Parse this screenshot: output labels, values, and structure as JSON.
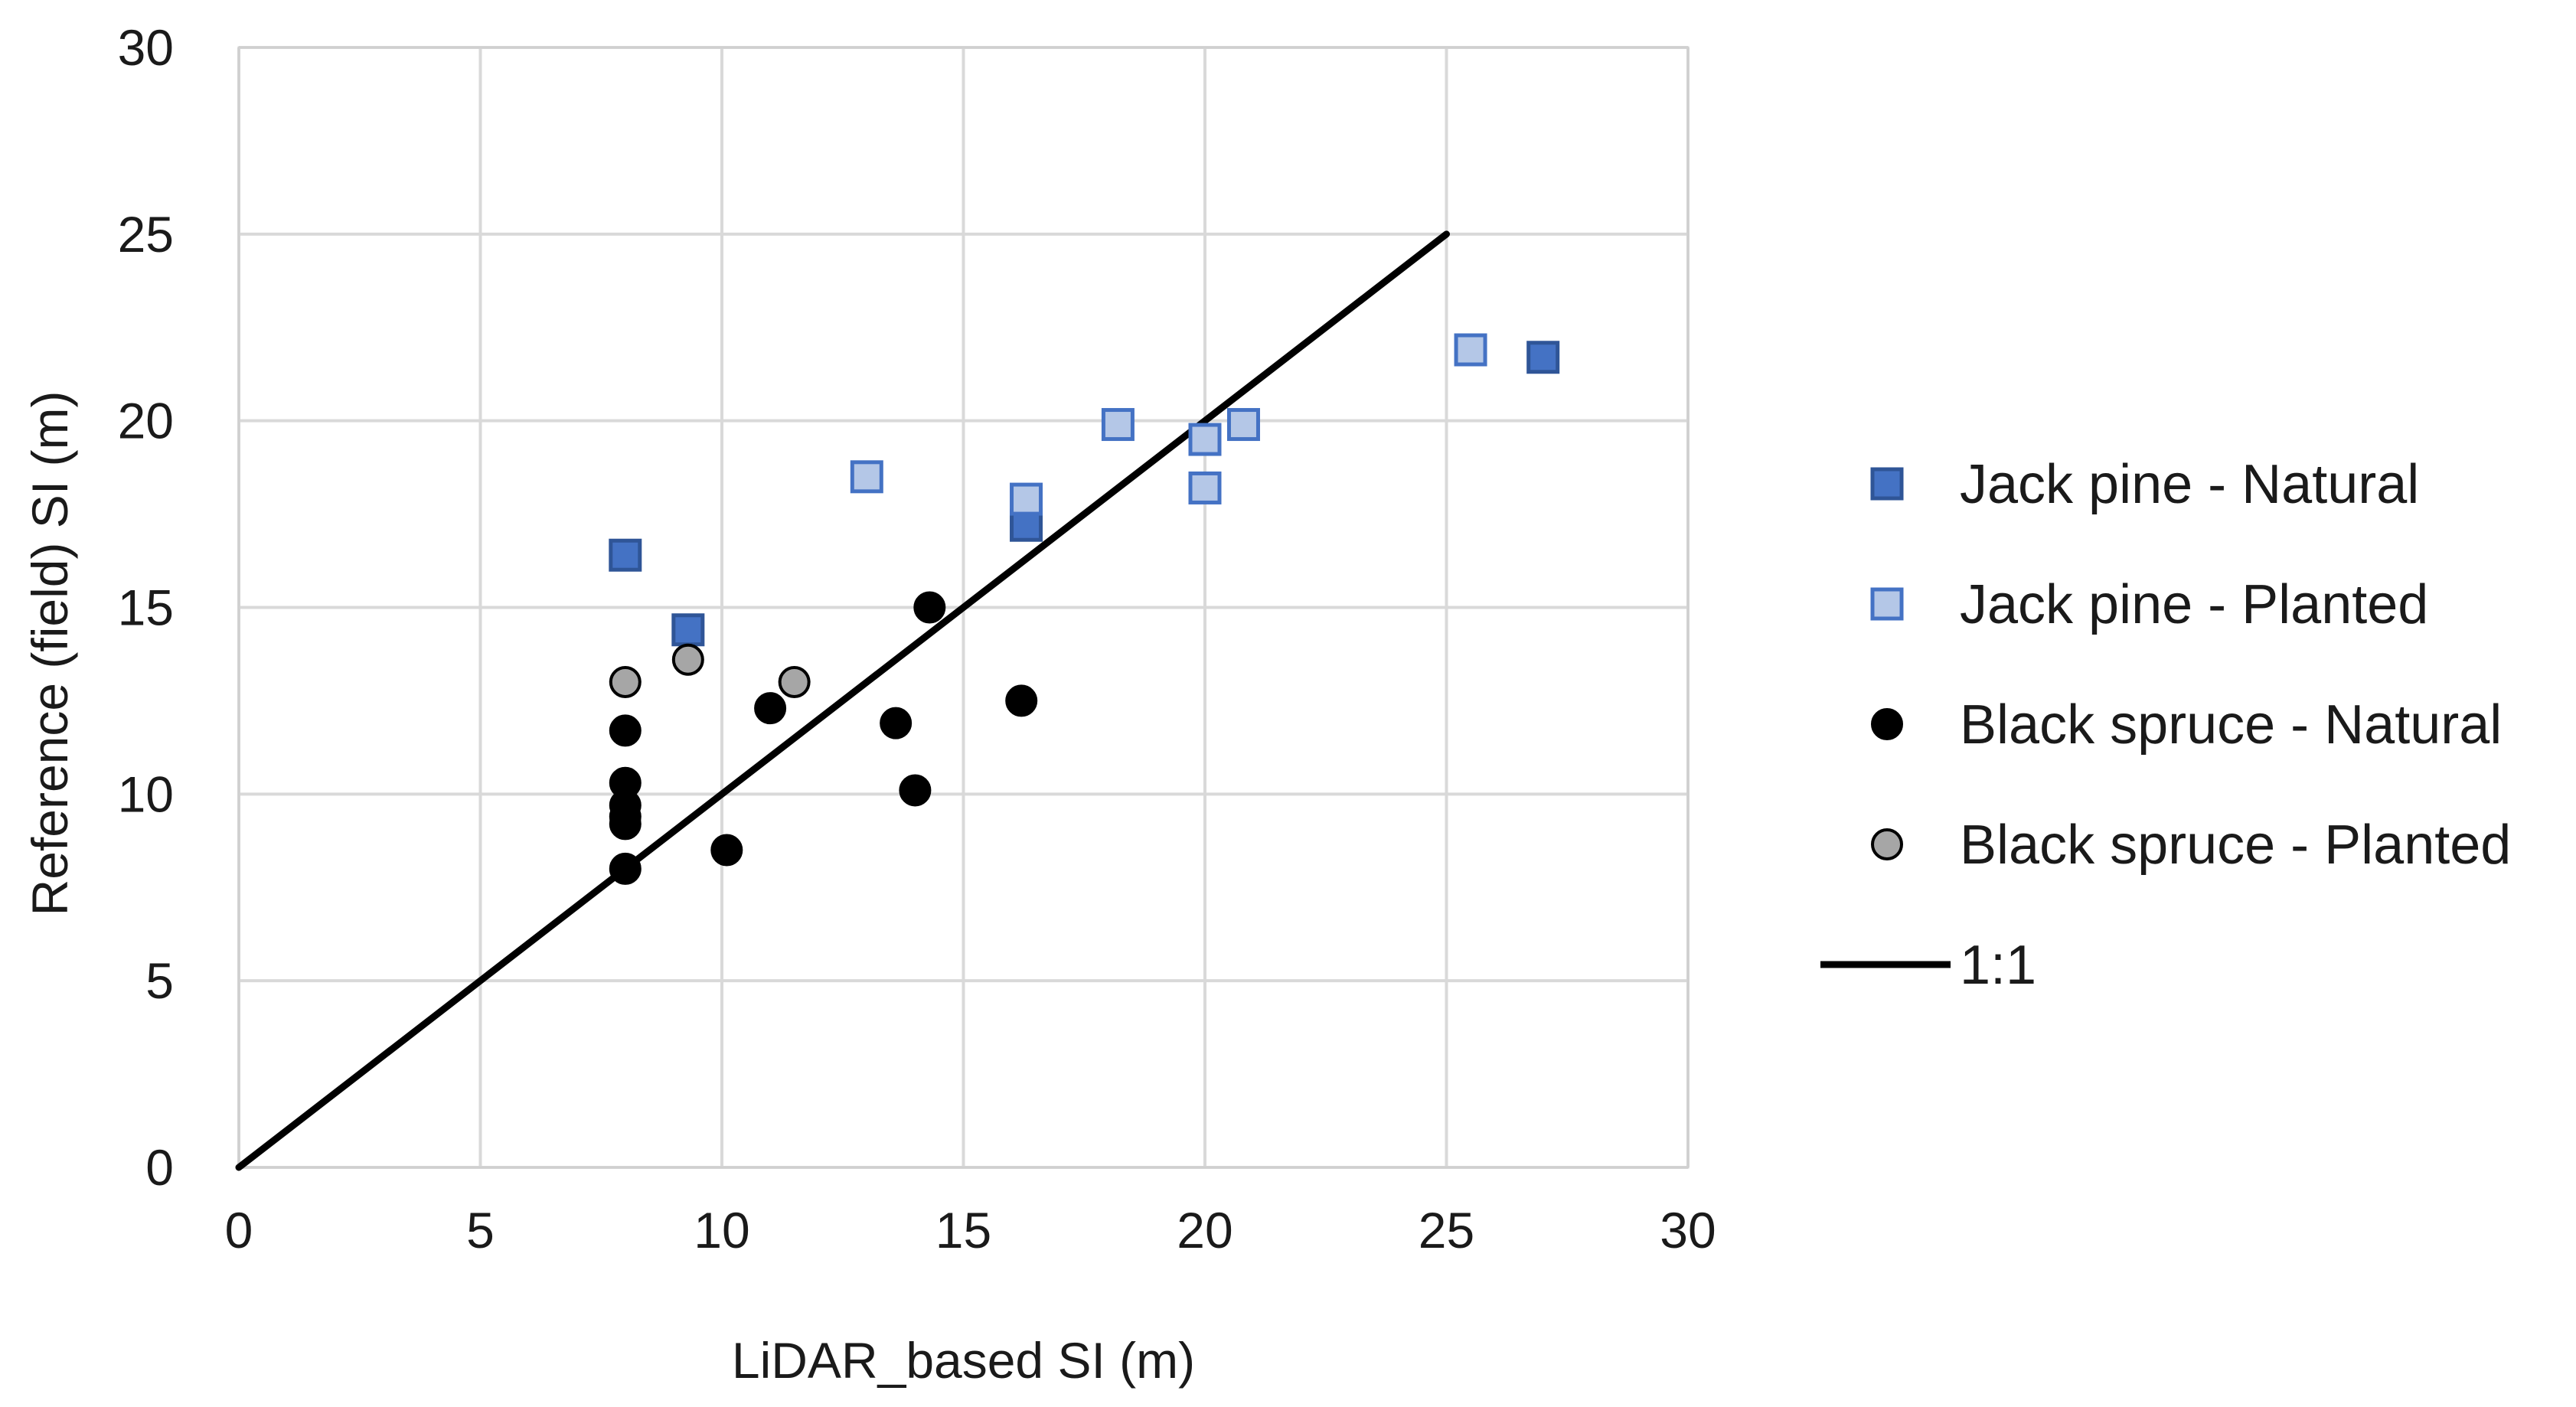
{
  "chart_data": {
    "type": "scatter",
    "title": "",
    "xlabel": "LiDAR_based SI (m)",
    "ylabel": "Reference (field) SI (m)",
    "xlim": [
      0,
      30
    ],
    "ylim": [
      0,
      30
    ],
    "xticks": [
      0,
      5,
      10,
      15,
      20,
      25,
      30
    ],
    "yticks": [
      0,
      5,
      10,
      15,
      20,
      25,
      30
    ],
    "grid": true,
    "legend_position": "right",
    "series": [
      {
        "name": "Jack pine - Natural",
        "marker": "square",
        "color": "#4472C4",
        "edge": "#2F5597",
        "points": [
          [
            8.0,
            16.4
          ],
          [
            9.3,
            14.4
          ],
          [
            16.3,
            17.2
          ],
          [
            27.0,
            21.7
          ]
        ]
      },
      {
        "name": "Jack pine - Planted",
        "marker": "square",
        "color": "#B4C7E7",
        "edge": "#4472C4",
        "points": [
          [
            13.0,
            18.5
          ],
          [
            16.3,
            17.9
          ],
          [
            18.2,
            19.9
          ],
          [
            20.0,
            19.5
          ],
          [
            20.8,
            19.9
          ],
          [
            20.0,
            18.2
          ],
          [
            25.5,
            21.9
          ]
        ]
      },
      {
        "name": "Black spruce - Natural",
        "marker": "circle",
        "color": "#000000",
        "edge": "#000000",
        "points": [
          [
            8.0,
            11.7
          ],
          [
            8.0,
            10.3
          ],
          [
            8.0,
            9.7
          ],
          [
            8.0,
            9.4
          ],
          [
            8.0,
            9.2
          ],
          [
            8.0,
            8.0
          ],
          [
            10.1,
            8.5
          ],
          [
            11.0,
            12.3
          ],
          [
            13.6,
            11.9
          ],
          [
            14.0,
            10.1
          ],
          [
            14.3,
            15.0
          ],
          [
            16.2,
            12.5
          ]
        ]
      },
      {
        "name": "Black spruce - Planted",
        "marker": "circle",
        "color": "#A6A6A6",
        "edge": "#000000",
        "points": [
          [
            8.0,
            13.0
          ],
          [
            9.3,
            13.6
          ],
          [
            11.5,
            13.0
          ]
        ]
      },
      {
        "name": "1:1",
        "marker": "line",
        "color": "#000000",
        "points": [
          [
            0,
            0
          ],
          [
            25,
            25
          ]
        ]
      }
    ]
  }
}
